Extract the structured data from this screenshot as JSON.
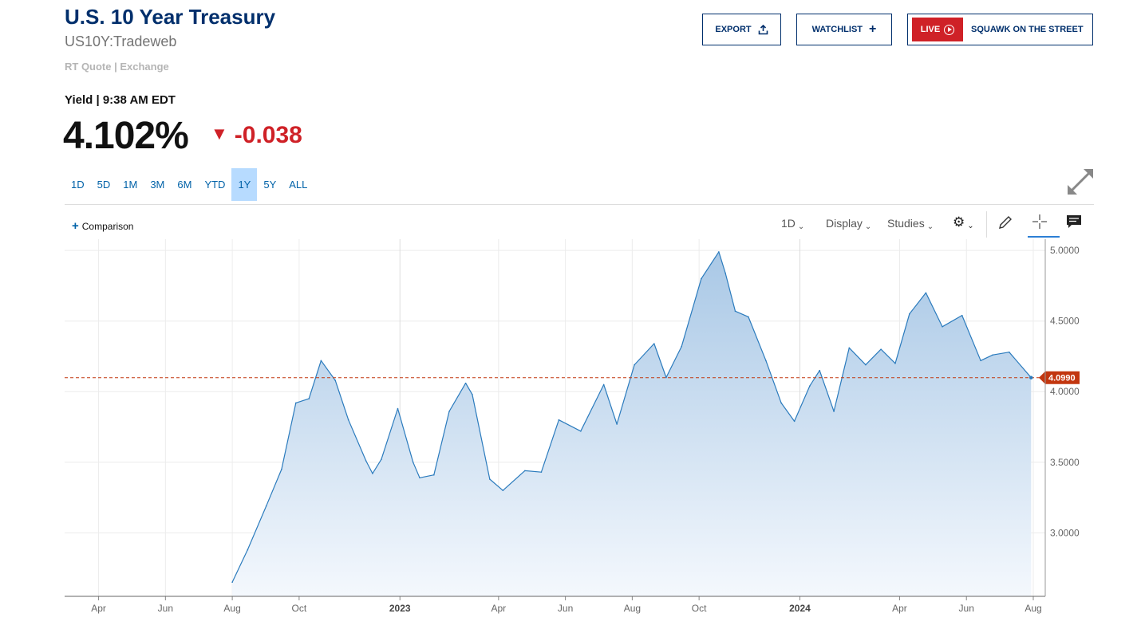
{
  "header": {
    "title": "U.S. 10 Year Treasury",
    "symbol": "US10Y:Tradeweb",
    "quote_source": "RT Quote | Exchange"
  },
  "actions": {
    "export_label": "EXPORT",
    "watchlist_label": "WATCHLIST",
    "live_label": "LIVE",
    "live_show": "SQUAWK ON THE STREET"
  },
  "quote": {
    "label": "Yield | 9:38 AM EDT",
    "price": "4.102%",
    "change": "-0.038",
    "change_direction": "down",
    "change_color": "#cf2127"
  },
  "ranges": {
    "items": [
      "1D",
      "5D",
      "1M",
      "3M",
      "6M",
      "YTD",
      "1Y",
      "5Y",
      "ALL"
    ],
    "active": "1Y"
  },
  "toolbar": {
    "comparison_label": "Comparison",
    "interval_label": "1D",
    "display_label": "Display",
    "studies_label": "Studies",
    "icons": [
      "gear-icon",
      "pencil-icon",
      "crosshair-icon",
      "comment-icon"
    ]
  },
  "chart_data": {
    "type": "area",
    "series": [
      {
        "x": [
          "2022-08-01",
          "2022-08-15",
          "2022-09-01",
          "2022-09-15",
          "2022-09-28",
          "2022-10-10",
          "2022-10-21",
          "2022-11-03",
          "2022-11-15",
          "2022-12-01",
          "2022-12-07",
          "2022-12-15",
          "2022-12-30",
          "2023-01-13",
          "2023-01-19",
          "2023-02-01",
          "2023-02-15",
          "2023-03-02",
          "2023-03-08",
          "2023-03-24",
          "2023-04-05",
          "2023-04-25",
          "2023-05-10",
          "2023-05-26",
          "2023-06-15",
          "2023-07-06",
          "2023-07-18",
          "2023-08-03",
          "2023-08-21",
          "2023-09-01",
          "2023-09-15",
          "2023-10-03",
          "2023-10-19",
          "2023-10-25",
          "2023-11-03",
          "2023-11-15",
          "2023-12-01",
          "2023-12-15",
          "2023-12-27",
          "2024-01-10",
          "2024-01-19",
          "2024-02-01",
          "2024-02-15",
          "2024-03-01",
          "2024-03-15",
          "2024-03-28",
          "2024-04-10",
          "2024-04-25",
          "2024-05-10",
          "2024-05-28",
          "2024-06-14",
          "2024-06-25",
          "2024-07-10",
          "2024-07-30"
        ],
        "values": [
          2.65,
          2.88,
          3.19,
          3.45,
          3.92,
          3.95,
          4.22,
          4.08,
          3.8,
          3.51,
          3.42,
          3.52,
          3.88,
          3.5,
          3.39,
          3.41,
          3.86,
          4.06,
          3.98,
          3.38,
          3.3,
          3.44,
          3.43,
          3.8,
          3.72,
          4.05,
          3.77,
          4.19,
          4.34,
          4.1,
          4.32,
          4.8,
          4.99,
          4.84,
          4.57,
          4.53,
          4.22,
          3.92,
          3.79,
          4.04,
          4.15,
          3.86,
          4.31,
          4.19,
          4.3,
          4.2,
          4.55,
          4.7,
          4.46,
          4.54,
          4.22,
          4.26,
          4.28,
          4.099
        ]
      }
    ],
    "x_ticks": [
      "Apr",
      "Jun",
      "Aug",
      "Oct",
      "2023",
      "Apr",
      "Jun",
      "Aug",
      "Oct",
      "2024",
      "Apr",
      "Jun",
      "Aug"
    ],
    "x_ticks_bold": [
      false,
      false,
      false,
      false,
      true,
      false,
      false,
      false,
      false,
      true,
      false,
      false,
      false
    ],
    "y_ticks": [
      "5.0000",
      "4.5000",
      "4.0000",
      "3.5000",
      "3.0000"
    ],
    "y_tick_values": [
      5.0,
      4.5,
      4.0,
      3.5,
      3.0
    ],
    "ylim": [
      2.55,
      5.08
    ],
    "current_value": 4.099,
    "current_label": "4.0990",
    "colors": {
      "line": "#2b7bbd",
      "fill_top": "#a9c8e6",
      "fill_bottom": "#f4f8fd",
      "current": "#c2360f"
    },
    "grid": true
  }
}
